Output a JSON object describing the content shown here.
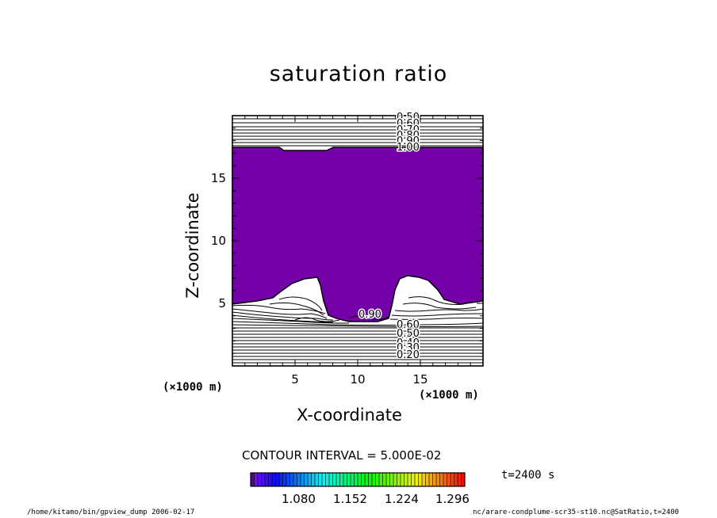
{
  "chart_data": {
    "type": "contour",
    "title": "saturation ratio",
    "xlabel": "X-coordinate",
    "ylabel": "Z-coordinate",
    "x_unit": "(×1000 m)",
    "y_unit": "(×1000 m)",
    "xlim": [
      0,
      20
    ],
    "ylim": [
      0,
      20
    ],
    "x_ticks": [
      5,
      10,
      15
    ],
    "y_ticks": [
      5,
      10,
      15
    ],
    "contour_interval": "CONTOUR INTERVAL = 5.000E-02",
    "time_label": "t=2400 s",
    "colorbar_labels": [
      "1.080",
      "1.152",
      "1.224",
      "1.296"
    ],
    "top_contour_labels": [
      "0.50",
      "0.60",
      "0.70",
      "0.80",
      "0.90",
      "1.00"
    ],
    "lower_contour_labels": [
      "0.90",
      "0.60",
      "0.50",
      "0.40",
      "0.30",
      "0.20"
    ],
    "colors": {
      "fill": "#7400a8",
      "background": "#ffffff",
      "line": "#000000"
    }
  },
  "footer": {
    "left": "/home/kitamo/bin/gpview_dump  2006-02-17",
    "right": "nc/arare-condplume-scr35-st10.nc@SatRatio,t=2400"
  }
}
